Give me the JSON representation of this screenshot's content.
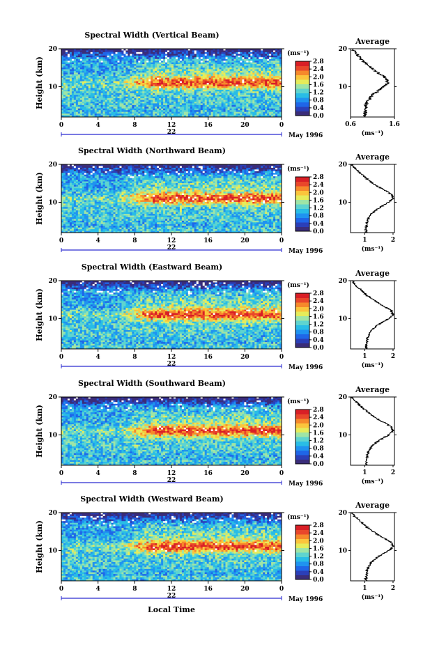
{
  "colors": {
    "palette": [
      "#3a2d7a",
      "#2b3fb8",
      "#1f66e8",
      "#1f93f0",
      "#29bde6",
      "#5fd4cf",
      "#9fe5a6",
      "#e6ec5a",
      "#fbc53c",
      "#f6892b",
      "#e9472b",
      "#d91f26"
    ],
    "axis": "#000000",
    "scan_marker": "#2b2bd0"
  },
  "xlabel": "Local Time",
  "date_label": "May 1996",
  "panels": [
    {
      "title": "Spectral Width (Vertical Beam)",
      "ylabel": "Height (km)",
      "day": "22",
      "unit": "(ms⁻¹)",
      "avg_title": "Average",
      "avg_unit": "(ms⁻¹)",
      "avg_xticks": [
        "0.6",
        "1.6"
      ],
      "avg_xrange": [
        0.6,
        1.6
      ]
    },
    {
      "title": "Spectral Width (Northward Beam)",
      "ylabel": "Height (km)",
      "day": "22",
      "unit": "(ms⁻¹)",
      "avg_title": "Average",
      "avg_unit": "(ms⁻¹)",
      "avg_xticks": [
        "1",
        "2"
      ],
      "avg_xrange": [
        0.5,
        2.05
      ]
    },
    {
      "title": "Spectral Width (Eastward Beam)",
      "ylabel": "Height (km)",
      "day": "22",
      "unit": "(ms⁻¹)",
      "avg_title": "Average",
      "avg_unit": "(ms⁻¹)",
      "avg_xticks": [
        "1",
        "2"
      ],
      "avg_xrange": [
        0.5,
        2.05
      ]
    },
    {
      "title": "Spectral Width (Southward Beam)",
      "ylabel": "Height (km)",
      "day": "22",
      "unit": "(ms⁻¹)",
      "avg_title": "Average",
      "avg_unit": "(ms⁻¹)",
      "avg_xticks": [
        "1",
        "2"
      ],
      "avg_xrange": [
        0.5,
        2.05
      ]
    },
    {
      "title": "Spectral Width (Westward Beam)",
      "ylabel": "Height (km)",
      "day": "22",
      "unit": "(ms⁻¹)",
      "avg_title": "Average",
      "avg_unit": "(ms⁻¹)",
      "avg_xticks": [
        "1",
        "2"
      ],
      "avg_xrange": [
        0.5,
        2.05
      ]
    }
  ],
  "chart_data": {
    "type": "heatmap",
    "panel_count": 5,
    "x": {
      "label": "Local Time",
      "range": [
        0,
        24
      ],
      "ticks": [
        "0",
        "4",
        "8",
        "12",
        "16",
        "20",
        "0"
      ]
    },
    "y": {
      "label": "Height (km)",
      "range": [
        2,
        20
      ],
      "ticks": [
        "10",
        "20"
      ]
    },
    "colorbar": {
      "unit": "(ms⁻¹)",
      "range": [
        0,
        2.8
      ],
      "ticks": [
        "0.0",
        "0.4",
        "0.8",
        "1.2",
        "1.6",
        "2.0",
        "2.4",
        "2.8"
      ]
    },
    "average_profile": {
      "heights": [
        2,
        3,
        4,
        5,
        6,
        7,
        8,
        9,
        10,
        11,
        12,
        13,
        14,
        15,
        16,
        17,
        18,
        19,
        20
      ],
      "values": [
        1.05,
        1.05,
        1.08,
        1.1,
        1.15,
        1.25,
        1.4,
        1.62,
        1.85,
        2.0,
        1.95,
        1.75,
        1.5,
        1.3,
        1.1,
        0.95,
        0.8,
        0.65,
        0.55
      ]
    }
  }
}
